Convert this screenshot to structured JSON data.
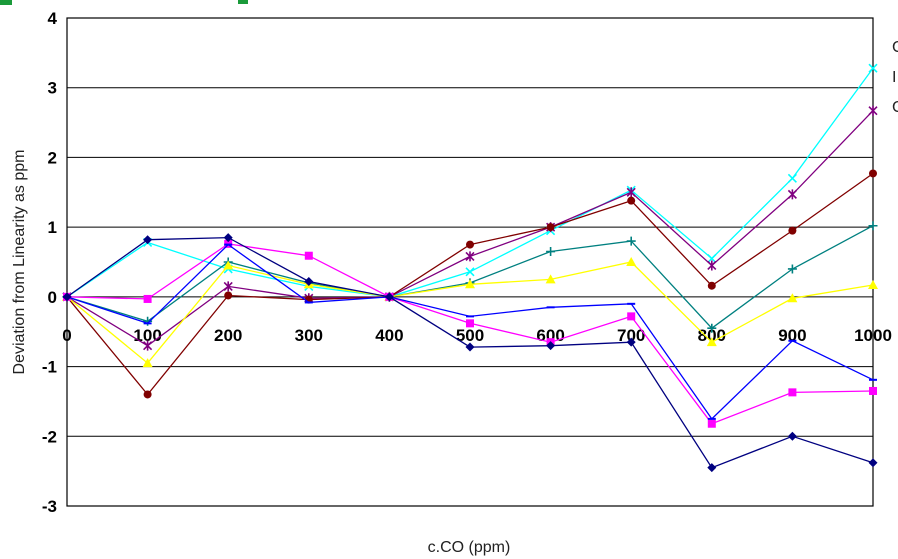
{
  "chart_data": {
    "type": "line",
    "title": "",
    "xlabel": "c.CO (ppm)",
    "ylabel": "Deviation from Linearity as ppm",
    "x": [
      0,
      100,
      200,
      300,
      400,
      500,
      600,
      700,
      800,
      900,
      1000
    ],
    "xlim": [
      0,
      1000
    ],
    "ylim": [
      -3,
      4
    ],
    "yticks": [
      4,
      3,
      2,
      1,
      0,
      -1,
      -2,
      -3
    ],
    "xticks": [
      0,
      100,
      200,
      300,
      400,
      500,
      600,
      700,
      800,
      900,
      1000
    ],
    "grid": "horizontal",
    "legend_entries_visible": [
      "C",
      "I",
      "C"
    ],
    "series": [
      {
        "color": "#00FFFF",
        "marker": "x",
        "values": [
          0,
          0.78,
          0.4,
          0.15,
          0,
          0.36,
          0.95,
          1.53,
          0.55,
          1.7,
          3.28
        ]
      },
      {
        "color": "#800080",
        "marker": "star",
        "values": [
          0,
          -0.7,
          0.15,
          -0.02,
          0,
          0.58,
          1.0,
          1.5,
          0.45,
          1.47,
          2.67
        ]
      },
      {
        "color": "#800000",
        "marker": "circle",
        "values": [
          0,
          -1.4,
          0.02,
          -0.04,
          0,
          0.75,
          1.0,
          1.38,
          0.16,
          0.95,
          1.77
        ]
      },
      {
        "color": "#008080",
        "marker": "plus",
        "values": [
          0,
          -0.35,
          0.5,
          0.2,
          0,
          0.2,
          0.65,
          0.8,
          -0.45,
          0.4,
          1.02
        ]
      },
      {
        "color": "#FFFF00",
        "marker": "triangle",
        "values": [
          0,
          -0.95,
          0.45,
          0.18,
          0,
          0.18,
          0.25,
          0.5,
          -0.65,
          -0.02,
          0.17
        ]
      },
      {
        "color": "#FF00FF",
        "marker": "square",
        "values": [
          0,
          -0.03,
          0.76,
          0.59,
          0,
          -0.38,
          -0.65,
          -0.28,
          -1.82,
          -1.37,
          -1.35
        ]
      },
      {
        "color": "#0000FF",
        "marker": "dash",
        "values": [
          0,
          -0.38,
          0.75,
          -0.08,
          0,
          -0.28,
          -0.15,
          -0.1,
          -1.75,
          -0.63,
          -1.19
        ]
      },
      {
        "color": "#000080",
        "marker": "diamond",
        "values": [
          0,
          0.82,
          0.85,
          0.22,
          0,
          -0.72,
          -0.7,
          -0.65,
          -2.45,
          -2.0,
          -2.38
        ]
      }
    ]
  }
}
